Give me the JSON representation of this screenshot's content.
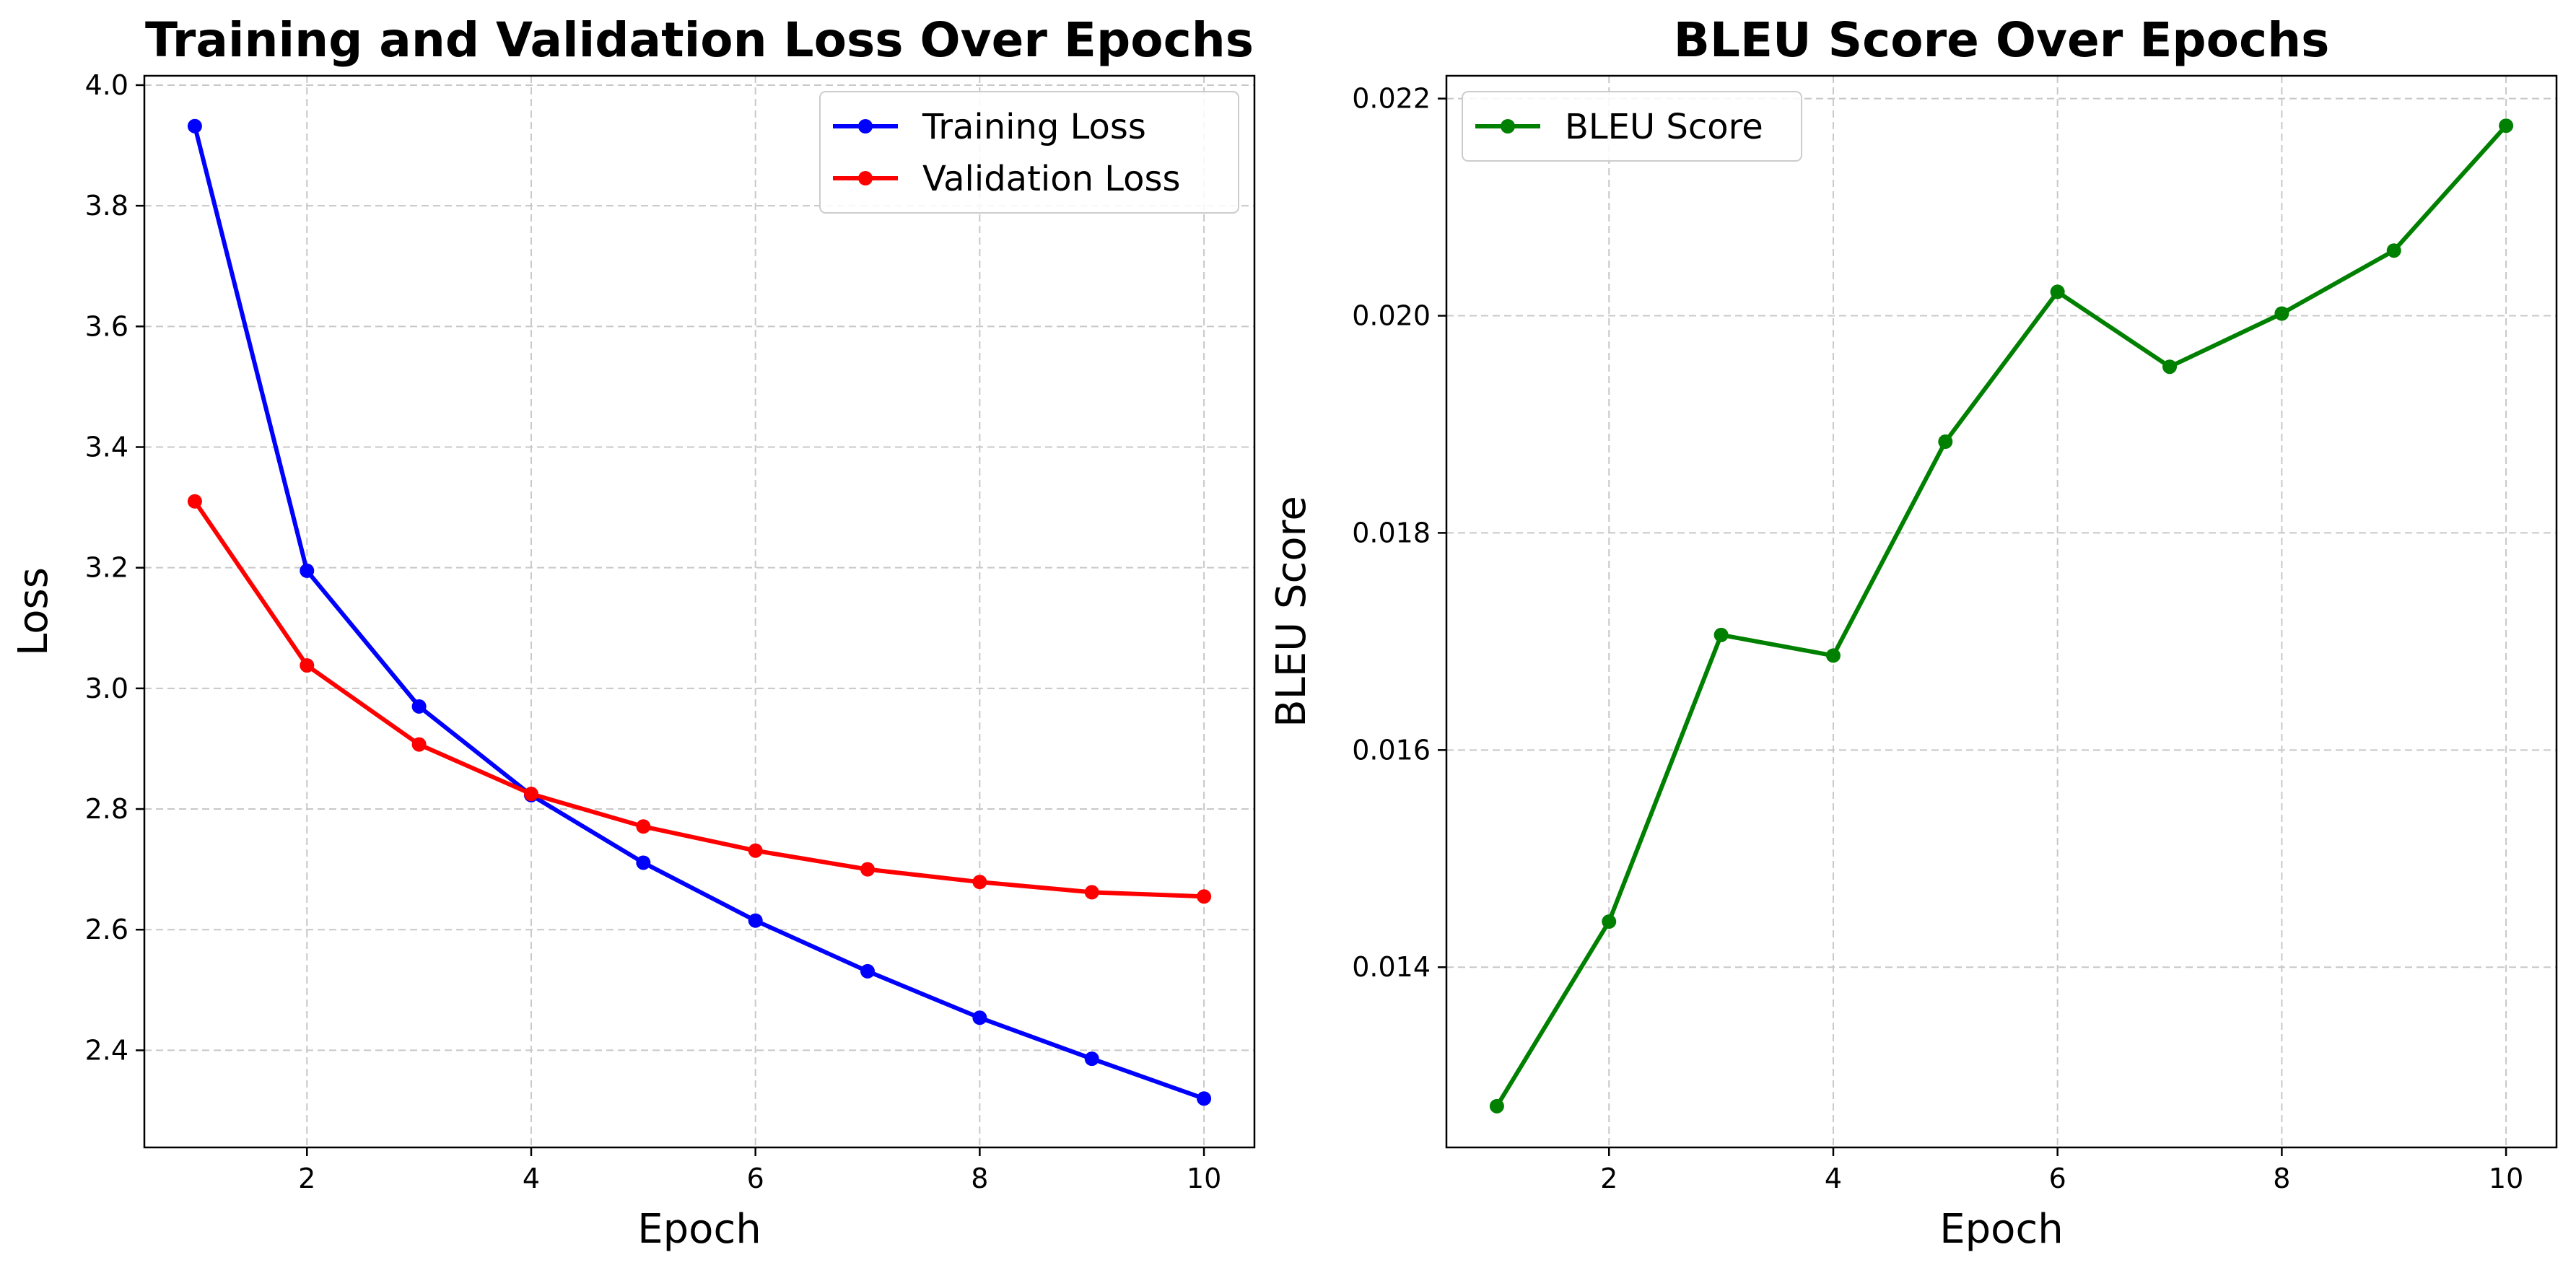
{
  "chart_data": [
    {
      "type": "line",
      "title": "Training and Validation Loss Over Epochs",
      "xlabel": "Epoch",
      "ylabel": "Loss",
      "xlim": [
        0.55,
        10.45
      ],
      "ylim": [
        2.239,
        4.0155
      ],
      "xticks": [
        2,
        4,
        6,
        8,
        10
      ],
      "yticks": [
        2.4,
        2.6,
        2.8,
        3.0,
        3.2,
        3.4,
        3.6,
        3.8,
        4.0
      ],
      "ytick_format": 1,
      "grid": true,
      "legend_position": "top-right",
      "x": [
        1,
        2,
        3,
        4,
        5,
        6,
        7,
        8,
        9,
        10
      ],
      "series": [
        {
          "name": "Training Loss",
          "color": "#0000ff",
          "values": [
            3.932,
            3.195,
            2.97,
            2.823,
            2.711,
            2.615,
            2.531,
            2.454,
            2.386,
            2.32
          ]
        },
        {
          "name": "Validation Loss",
          "color": "#ff0000",
          "values": [
            3.31,
            3.038,
            2.907,
            2.825,
            2.771,
            2.731,
            2.7,
            2.679,
            2.662,
            2.655
          ]
        }
      ]
    },
    {
      "type": "line",
      "title": "BLEU Score Over Epochs",
      "xlabel": "Epoch",
      "ylabel": "BLEU Score",
      "xlim": [
        0.55,
        10.45
      ],
      "ylim": [
        0.01234,
        0.02221
      ],
      "xticks": [
        2,
        4,
        6,
        8,
        10
      ],
      "yticks": [
        0.014,
        0.016,
        0.018,
        0.02,
        0.022
      ],
      "ytick_format": 3,
      "grid": true,
      "legend_position": "top-left",
      "x": [
        1,
        2,
        3,
        4,
        5,
        6,
        7,
        8,
        9,
        10
      ],
      "series": [
        {
          "name": "BLEU Score",
          "color": "#008000",
          "values": [
            0.01272,
            0.01442,
            0.01706,
            0.01687,
            0.01884,
            0.02022,
            0.01953,
            0.02002,
            0.0206,
            0.02175
          ]
        }
      ]
    }
  ]
}
